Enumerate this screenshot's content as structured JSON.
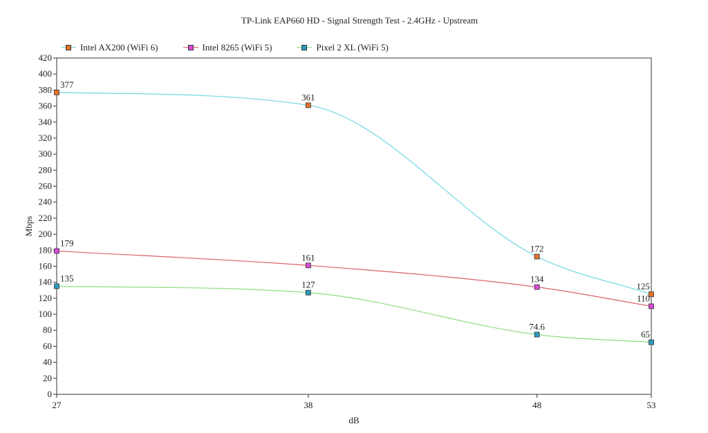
{
  "chart_data": {
    "type": "line",
    "title": "TP-Link EAP660 HD - Signal Strength Test - 2.4GHz - Upstream",
    "xlabel": "dB",
    "ylabel": "Mbps",
    "categories": [
      "27",
      "38",
      "48",
      "53"
    ],
    "ylim": [
      0,
      420
    ],
    "ytick_step": 20,
    "grid": false,
    "legend_position": "top-left",
    "series": [
      {
        "name": "Intel AX200 (WiFi 6)",
        "values": [
          377,
          361,
          172,
          125
        ],
        "labels": [
          "377",
          "361",
          "172",
          "125"
        ],
        "line_color": "#6fd6e0",
        "marker_color": "#e8742a"
      },
      {
        "name": "Intel 8265 (WiFi 5)",
        "values": [
          179,
          161,
          134,
          110
        ],
        "labels": [
          "179",
          "161",
          "134",
          "110"
        ],
        "line_color": "#d9606a",
        "marker_color": "#d84bd8"
      },
      {
        "name": "Pixel 2 XL (WiFi 5)",
        "values": [
          135,
          127,
          74.6,
          65
        ],
        "labels": [
          "135",
          "127",
          "74.6",
          "65"
        ],
        "line_color": "#8edc80",
        "marker_color": "#2a9cc0"
      }
    ]
  }
}
